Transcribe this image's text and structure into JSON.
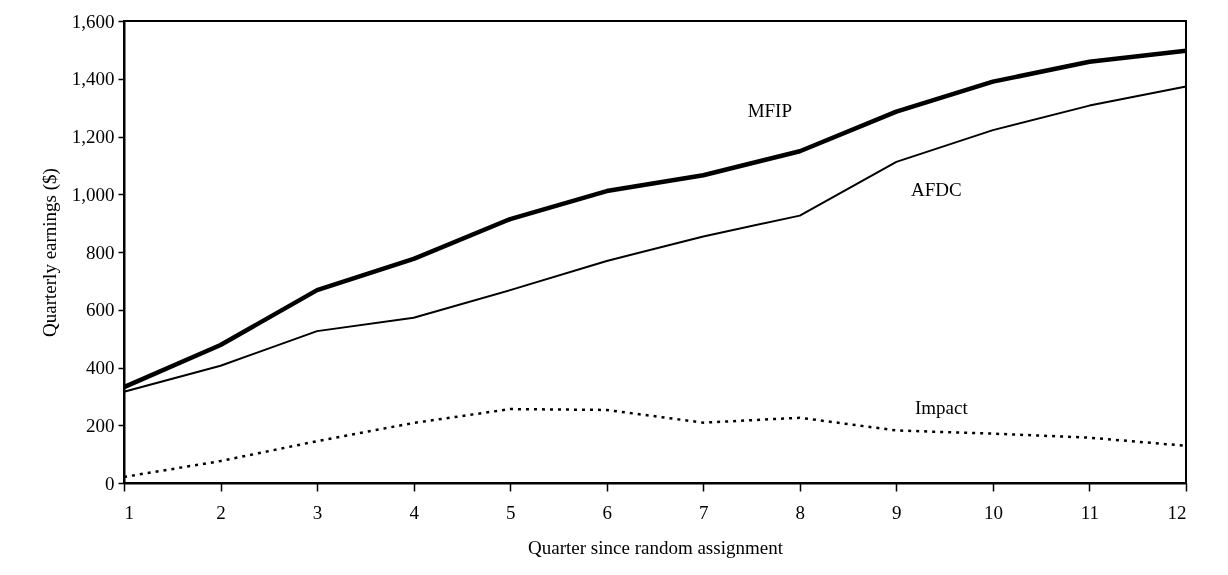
{
  "chart_data": {
    "type": "line",
    "xlabel": "Quarter since random assignment",
    "ylabel": "Quarterly earnings ($)",
    "x": [
      1,
      2,
      3,
      4,
      5,
      6,
      7,
      8,
      9,
      10,
      11,
      12
    ],
    "xlim": [
      1,
      12
    ],
    "xticks": [
      1,
      2,
      3,
      4,
      5,
      6,
      7,
      8,
      9,
      10,
      11,
      12
    ],
    "ylim": [
      0,
      1600
    ],
    "yticks": [
      {
        "value": 0,
        "label": "0"
      },
      {
        "value": 200,
        "label": "200"
      },
      {
        "value": 400,
        "label": "400"
      },
      {
        "value": 600,
        "label": "600"
      },
      {
        "value": 800,
        "label": "800"
      },
      {
        "value": 1000,
        "label": "1,000"
      },
      {
        "value": 1200,
        "label": "1,200"
      },
      {
        "value": 1400,
        "label": "1,400"
      },
      {
        "value": 1600,
        "label": "1,600"
      }
    ],
    "grid": false,
    "series": [
      {
        "name": "MFIP",
        "color": "#000000",
        "line_style": "solid",
        "values": [
          332,
          478,
          668,
          776,
          914,
          1011,
          1066,
          1149,
          1286,
          1390,
          1459,
          1497
        ]
      },
      {
        "name": "AFDC",
        "color": "#000000",
        "line_style": "solid",
        "values": [
          316,
          406,
          526,
          572,
          668,
          769,
          854,
          926,
          1112,
          1222,
          1307,
          1373
        ]
      },
      {
        "name": "Impact",
        "color": "#000000",
        "line_style": "dotted",
        "values": [
          21,
          76,
          145,
          208,
          256,
          253,
          209,
          226,
          182,
          171,
          157,
          129
        ]
      }
    ]
  }
}
